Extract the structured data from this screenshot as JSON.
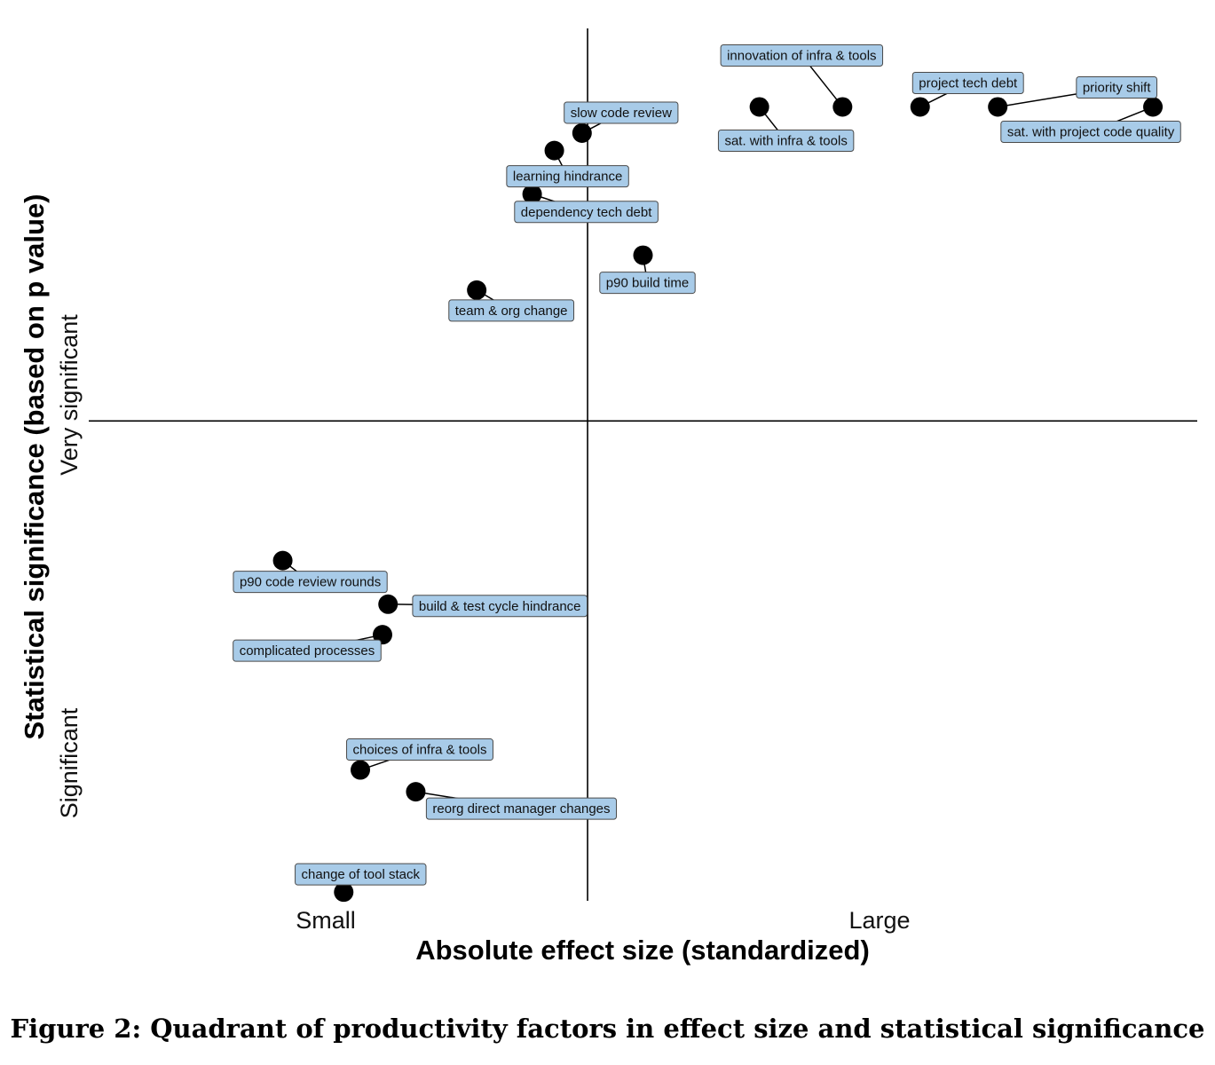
{
  "chart_data": {
    "type": "scatter",
    "xlabel": "Absolute effect size (standardized)",
    "ylabel": "Statistical significance (based on p value)",
    "x_tick_labels": [
      "Small",
      "Large"
    ],
    "y_tick_labels": [
      "Significant",
      "Very significant"
    ],
    "xlim": [
      0,
      100
    ],
    "ylim": [
      0,
      100
    ],
    "quadrant_divider": {
      "x": 45,
      "y": 55
    },
    "grid": false,
    "legend": "none",
    "colors": {
      "point": "#000000",
      "label_fill": "#a8cbe8",
      "label_border": "#4a4a4a"
    },
    "points": [
      {
        "label": "innovation of infra & tools",
        "x": 68,
        "y": 91
      },
      {
        "label": "sat. with infra & tools",
        "x": 60.5,
        "y": 91
      },
      {
        "label": "project tech debt",
        "x": 75,
        "y": 91
      },
      {
        "label": "priority shift",
        "x": 82,
        "y": 91
      },
      {
        "label": "sat. with project code quality",
        "x": 96,
        "y": 91
      },
      {
        "label": "slow code review",
        "x": 44.5,
        "y": 88
      },
      {
        "label": "learning hindrance",
        "x": 42,
        "y": 86
      },
      {
        "label": "dependency tech debt",
        "x": 40,
        "y": 81
      },
      {
        "label": "p90 build time",
        "x": 50,
        "y": 74
      },
      {
        "label": "team & org change",
        "x": 35,
        "y": 70
      },
      {
        "label": "p90 code review rounds",
        "x": 17.5,
        "y": 39
      },
      {
        "label": "build & test cycle hindrance",
        "x": 27,
        "y": 34
      },
      {
        "label": "complicated processes",
        "x": 26.5,
        "y": 30.5
      },
      {
        "label": "choices of infra & tools",
        "x": 24.5,
        "y": 15
      },
      {
        "label": "reorg direct manager changes",
        "x": 29.5,
        "y": 12.5
      },
      {
        "label": "change of tool stack",
        "x": 23,
        "y": 1
      }
    ]
  },
  "caption": "Figure 2: Quadrant of productivity factors in effect size and statistical significance"
}
